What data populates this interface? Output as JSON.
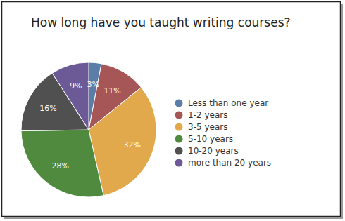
{
  "chart_data": {
    "type": "pie",
    "title": "How long have you taught writing courses?",
    "categories": [
      "Less than one year",
      "1-2 years",
      "3-5 years",
      "5-10 years",
      "10-20 years",
      "more than 20 years"
    ],
    "values": [
      3,
      11,
      32,
      28,
      16,
      9
    ],
    "value_labels": [
      "3%",
      "11%",
      "32%",
      "28%",
      "16%",
      "9%"
    ],
    "colors": [
      "#5b7ea8",
      "#a65656",
      "#e2a94c",
      "#4f8a3f",
      "#505050",
      "#6c5a96"
    ],
    "data_labels": true,
    "legend": "right"
  }
}
